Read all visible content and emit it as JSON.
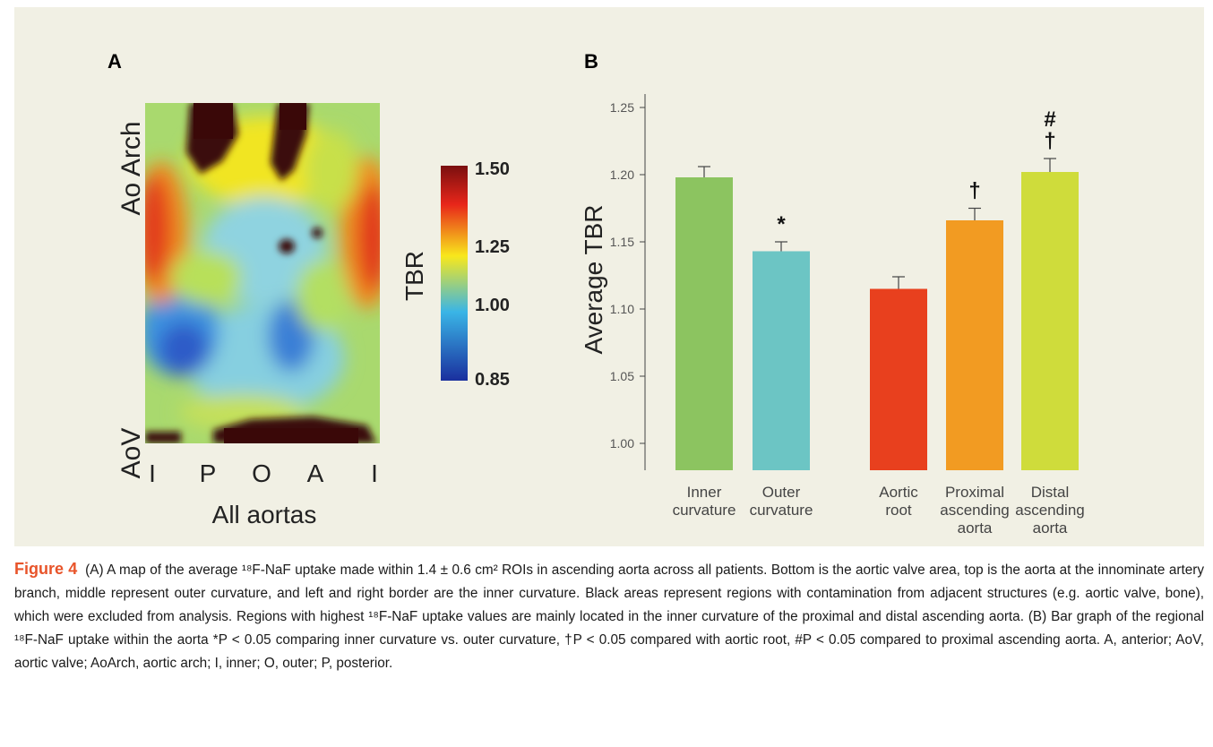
{
  "panel_a": {
    "letter": "A",
    "y_top_label": "Ao Arch",
    "y_bottom_label": "AoV",
    "x_ticks": [
      "I",
      "P",
      "O",
      "A",
      "I"
    ],
    "x_title": "All aortas",
    "colorbar_title": "TBR",
    "colorbar_ticks": [
      "1.50",
      "1.25",
      "1.00",
      "0.85"
    ],
    "colorbar_colors": [
      "#7a0f0f",
      "#e8261a",
      "#f8e81c",
      "#3ab5e6",
      "#1a2f9e"
    ]
  },
  "panel_b": {
    "letter": "B"
  },
  "chart_data": {
    "type": "bar",
    "ylabel": "Average TBR",
    "xlabel": "",
    "ylim": [
      0.98,
      1.26
    ],
    "yticks": [
      "1.00",
      "1.05",
      "1.10",
      "1.15",
      "1.20",
      "1.25"
    ],
    "categories": [
      [
        "Inner",
        "curvature"
      ],
      [
        "Outer",
        "curvature"
      ],
      [
        "Aortic",
        "root"
      ],
      [
        "Proximal",
        "ascending",
        "aorta"
      ],
      [
        "Distal",
        "ascending",
        "aorta"
      ]
    ],
    "values": [
      1.198,
      1.143,
      1.115,
      1.166,
      1.202
    ],
    "errors": [
      0.008,
      0.007,
      0.009,
      0.009,
      0.01
    ],
    "colors": [
      "#8cc460",
      "#6cc5c4",
      "#e8401e",
      "#f29b22",
      "#cfdc3b"
    ],
    "annotations": [
      [],
      [
        "*"
      ],
      [],
      [
        "†"
      ],
      [
        "#",
        "†"
      ]
    ],
    "grid": false
  },
  "caption": {
    "label": "Figure 4",
    "text": "(A) A map of the average ¹⁸F-NaF uptake made within 1.4 ± 0.6 cm² ROIs in ascending aorta across all patients. Bottom is the aortic valve area, top is the aorta at the innominate artery branch, middle represent outer curvature, and left and right border are the inner curvature. Black areas represent regions with contamination from adjacent structures (e.g. aortic valve, bone), which were excluded from analysis. Regions with highest ¹⁸F-NaF uptake values are mainly located in the inner curvature of the proximal and distal ascending aorta. (B) Bar graph of the regional ¹⁸F-NaF uptake within the aorta *P < 0.05 comparing inner curvature vs. outer curvature, †P < 0.05 compared with aortic root, #P < 0.05 compared to proximal ascending aorta. A, anterior; AoV, aortic valve; AoArch, aortic arch; I, inner; O, outer; P, posterior."
  }
}
